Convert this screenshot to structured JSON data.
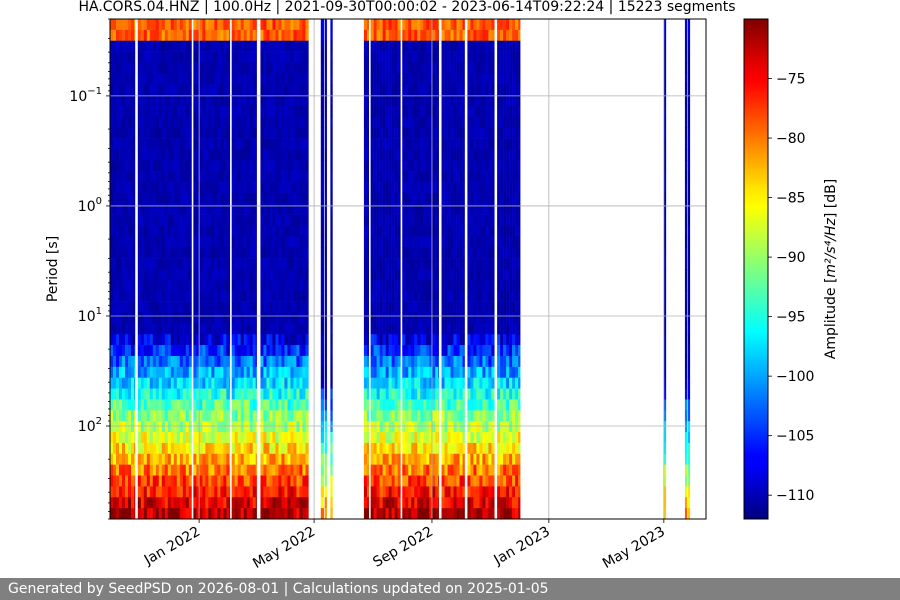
{
  "chart_data": {
    "type": "heatmap",
    "title": "HA.CORS.04.HNZ | 100.0Hz | 2021-09-30T00:00:02 - 2023-06-14T09:22:24 | 15223 segments",
    "ylabel": "Period [s]",
    "y_scale": "log",
    "y_inverted": true,
    "ylim": [
      0.02,
      700
    ],
    "y_major_ticks": [
      {
        "value": 0.1,
        "base": "10",
        "exp": "−1"
      },
      {
        "value": 1,
        "base": "10",
        "exp": "0"
      },
      {
        "value": 10,
        "base": "10",
        "exp": "1"
      },
      {
        "value": 100,
        "base": "10",
        "exp": "2"
      }
    ],
    "xlim": [
      "2021-09-30",
      "2023-06-14"
    ],
    "x_ticks": [
      {
        "date": "2022-01-01",
        "label": "Jan 2022"
      },
      {
        "date": "2022-05-01",
        "label": "May 2022"
      },
      {
        "date": "2022-09-01",
        "label": "Sep 2022"
      },
      {
        "date": "2023-01-01",
        "label": "Jan 2023"
      },
      {
        "date": "2023-05-01",
        "label": "May 2023"
      }
    ],
    "grid": true,
    "colormap": "jet",
    "colorbar": {
      "label_text": "Amplitude [",
      "label_units_math": "m²/s⁴/Hz",
      "label_suffix": "] [dB]",
      "min": -112,
      "max": -70,
      "ticks": [
        -75,
        -80,
        -85,
        -90,
        -95,
        -100,
        -105,
        -110
      ],
      "tick_labels": [
        "−75",
        "−80",
        "−85",
        "−90",
        "−95",
        "−100",
        "−105",
        "−110"
      ]
    },
    "data_periods": [
      {
        "start": "2021-09-30",
        "end": "2021-10-26",
        "profile": "active"
      },
      {
        "start": "2021-10-29",
        "end": "2021-12-24",
        "profile": "active"
      },
      {
        "start": "2021-12-26",
        "end": "2022-02-02",
        "profile": "active"
      },
      {
        "start": "2022-02-04",
        "end": "2022-03-02",
        "profile": "active"
      },
      {
        "start": "2022-03-06",
        "end": "2022-04-25",
        "profile": "active"
      },
      {
        "start": "2022-05-08",
        "end": "2022-05-11",
        "profile": "sparse"
      },
      {
        "start": "2022-05-18",
        "end": "2022-05-20",
        "profile": "sparse"
      },
      {
        "start": "2022-06-22",
        "end": "2022-06-27",
        "profile": "active"
      },
      {
        "start": "2022-06-29",
        "end": "2022-07-30",
        "profile": "active"
      },
      {
        "start": "2022-08-01",
        "end": "2022-09-08",
        "profile": "active"
      },
      {
        "start": "2022-09-11",
        "end": "2022-10-05",
        "profile": "active"
      },
      {
        "start": "2022-10-08",
        "end": "2022-11-05",
        "profile": "active"
      },
      {
        "start": "2022-11-08",
        "end": "2022-12-02",
        "profile": "active"
      },
      {
        "start": "2022-05-12",
        "end": "2022-05-12",
        "profile": "sparse"
      },
      {
        "start": "2023-05-01",
        "end": "2023-05-02",
        "profile": "sparse"
      },
      {
        "start": "2023-05-23",
        "end": "2023-05-24",
        "profile": "sparse"
      },
      {
        "start": "2023-05-26",
        "end": "2023-05-26",
        "profile": "sparse"
      }
    ]
  },
  "footer": {
    "text": "Generated by SeedPSD on 2026-08-01 | Calculations updated on 2025-01-05"
  }
}
